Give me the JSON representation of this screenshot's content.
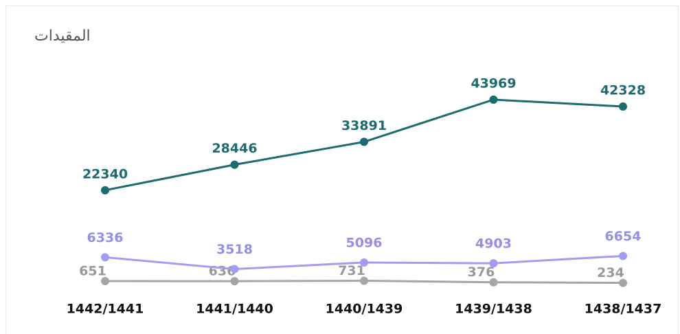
{
  "chart_data": {
    "type": "line",
    "title": "المقيدات",
    "categories": [
      "1442/1441",
      "1441/1440",
      "1440/1439",
      "1439/1438",
      "1438/1437"
    ],
    "series": [
      {
        "color": "#1b6b6f",
        "values": [
          22340,
          28446,
          33891,
          43969,
          42328
        ]
      },
      {
        "color": "#a39cf2",
        "values": [
          6336,
          3518,
          5096,
          4903,
          6654
        ]
      },
      {
        "color": "#a6a6a6",
        "values": [
          651,
          636,
          731,
          376,
          234
        ]
      }
    ]
  }
}
